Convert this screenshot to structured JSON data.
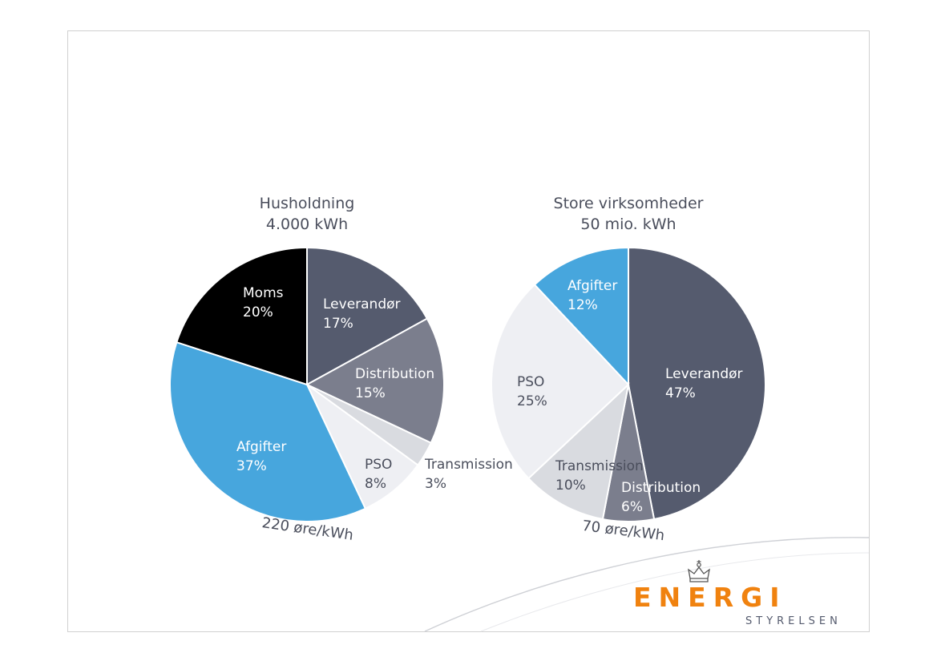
{
  "slide": {
    "logo": {
      "wordmark": "ENERGI",
      "subtitle": "STYRELSEN",
      "accent_color": "#f0820f",
      "crown_icon": "crown-icon"
    }
  },
  "chart_data": [
    {
      "type": "pie",
      "title": "Husholdning",
      "subtitle": "4.000 kWh",
      "annotation": "220 øre/kWh",
      "slices": [
        {
          "label": "Leverandør",
          "value": 17,
          "value_label": "17%",
          "color": "#555b6e",
          "text_color": "#ffffff"
        },
        {
          "label": "Distribution",
          "value": 15,
          "value_label": "15%",
          "color": "#7b7e8d",
          "text_color": "#ffffff"
        },
        {
          "label": "Transmission",
          "value": 3,
          "value_label": "3%",
          "color": "#d9dbe0",
          "text_color": "#4a4e5c"
        },
        {
          "label": "PSO",
          "value": 8,
          "value_label": "8%",
          "color": "#eeeff3",
          "text_color": "#4a4e5c"
        },
        {
          "label": "Afgifter",
          "value": 37,
          "value_label": "37%",
          "color": "#47a6dd",
          "text_color": "#ffffff"
        },
        {
          "label": "Moms",
          "value": 20,
          "value_label": "20%",
          "color": "#000000",
          "text_color": "#ffffff"
        }
      ]
    },
    {
      "type": "pie",
      "title": "Store virksomheder",
      "subtitle": "50 mio. kWh",
      "annotation": "70 øre/kWh",
      "slices": [
        {
          "label": "Leverandør",
          "value": 47,
          "value_label": "47%",
          "color": "#555b6e",
          "text_color": "#ffffff"
        },
        {
          "label": "Distribution",
          "value": 6,
          "value_label": "6%",
          "color": "#7b7e8d",
          "text_color": "#ffffff"
        },
        {
          "label": "Transmission",
          "value": 10,
          "value_label": "10%",
          "color": "#d9dbe0",
          "text_color": "#4a4e5c"
        },
        {
          "label": "PSO",
          "value": 25,
          "value_label": "25%",
          "color": "#eeeff3",
          "text_color": "#4a4e5c"
        },
        {
          "label": "Afgifter",
          "value": 12,
          "value_label": "12%",
          "color": "#47a6dd",
          "text_color": "#ffffff"
        }
      ]
    }
  ]
}
